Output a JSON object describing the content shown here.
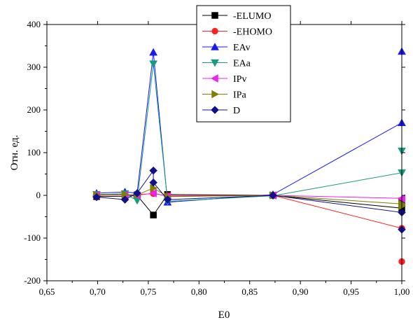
{
  "chart_data": {
    "type": "scatter",
    "xlabel": "E0",
    "ylabel": "Отн. ед.",
    "xlim": [
      0.65,
      1.0
    ],
    "ylim": [
      -200,
      400
    ],
    "x_ticks": [
      "0,65",
      "0,70",
      "0,75",
      "0,80",
      "0,85",
      "0,90",
      "0,95",
      "1,00"
    ],
    "y_ticks": [
      "-200",
      "-100",
      "0",
      "100",
      "200",
      "300",
      "400"
    ],
    "legend_position": "top-center",
    "grid": false,
    "series": [
      {
        "name": "-ELUMO",
        "color": "#000000",
        "marker": "square",
        "points": [
          [
            0.699,
            -3
          ],
          [
            0.727,
            -2
          ],
          [
            0.739,
            0
          ],
          [
            0.755,
            -46
          ],
          [
            0.769,
            2
          ],
          [
            0.873,
            0
          ],
          [
            1.0,
            -30
          ],
          [
            1.0,
            -13
          ]
        ]
      },
      {
        "name": "-EHOMO",
        "color": "#ff2020",
        "marker": "circle",
        "points": [
          [
            0.699,
            0
          ],
          [
            0.727,
            1
          ],
          [
            0.739,
            2
          ],
          [
            0.755,
            4
          ],
          [
            0.769,
            -1
          ],
          [
            0.873,
            0
          ],
          [
            1.0,
            -77
          ],
          [
            1.0,
            -155
          ]
        ]
      },
      {
        "name": "EAv",
        "color": "#1a1aee",
        "marker": "triangle-up",
        "points": [
          [
            0.699,
            5
          ],
          [
            0.727,
            8
          ],
          [
            0.739,
            5
          ],
          [
            0.755,
            335
          ],
          [
            0.769,
            -16
          ],
          [
            0.873,
            2
          ],
          [
            1.0,
            170
          ],
          [
            1.0,
            337
          ]
        ]
      },
      {
        "name": "EAa",
        "color": "#1a9a80",
        "marker": "triangle-down",
        "points": [
          [
            0.699,
            2
          ],
          [
            0.727,
            4
          ],
          [
            0.739,
            -12
          ],
          [
            0.755,
            308
          ],
          [
            0.769,
            -14
          ],
          [
            0.873,
            -1
          ],
          [
            1.0,
            53
          ],
          [
            1.0,
            104
          ]
        ]
      },
      {
        "name": "IPv",
        "color": "#ee20ee",
        "marker": "triangle-left",
        "points": [
          [
            0.699,
            1
          ],
          [
            0.727,
            1
          ],
          [
            0.739,
            0
          ],
          [
            0.755,
            5
          ],
          [
            0.769,
            -2
          ],
          [
            0.873,
            0
          ],
          [
            1.0,
            -7
          ],
          [
            1.0,
            -8
          ]
        ]
      },
      {
        "name": "IPa",
        "color": "#808000",
        "marker": "triangle-right",
        "points": [
          [
            0.699,
            1
          ],
          [
            0.727,
            2
          ],
          [
            0.739,
            1
          ],
          [
            0.755,
            17
          ],
          [
            0.769,
            -3
          ],
          [
            0.873,
            0
          ],
          [
            1.0,
            -20
          ],
          [
            1.0,
            -25
          ]
        ]
      },
      {
        "name": "D",
        "color": "#10108a",
        "marker": "diamond",
        "points": [
          [
            0.699,
            -4
          ],
          [
            0.727,
            -10
          ],
          [
            0.739,
            5
          ],
          [
            0.755,
            58
          ],
          [
            0.755,
            30
          ],
          [
            0.769,
            -10
          ],
          [
            0.873,
            0
          ],
          [
            1.0,
            -40
          ],
          [
            1.0,
            -80
          ]
        ]
      }
    ]
  }
}
